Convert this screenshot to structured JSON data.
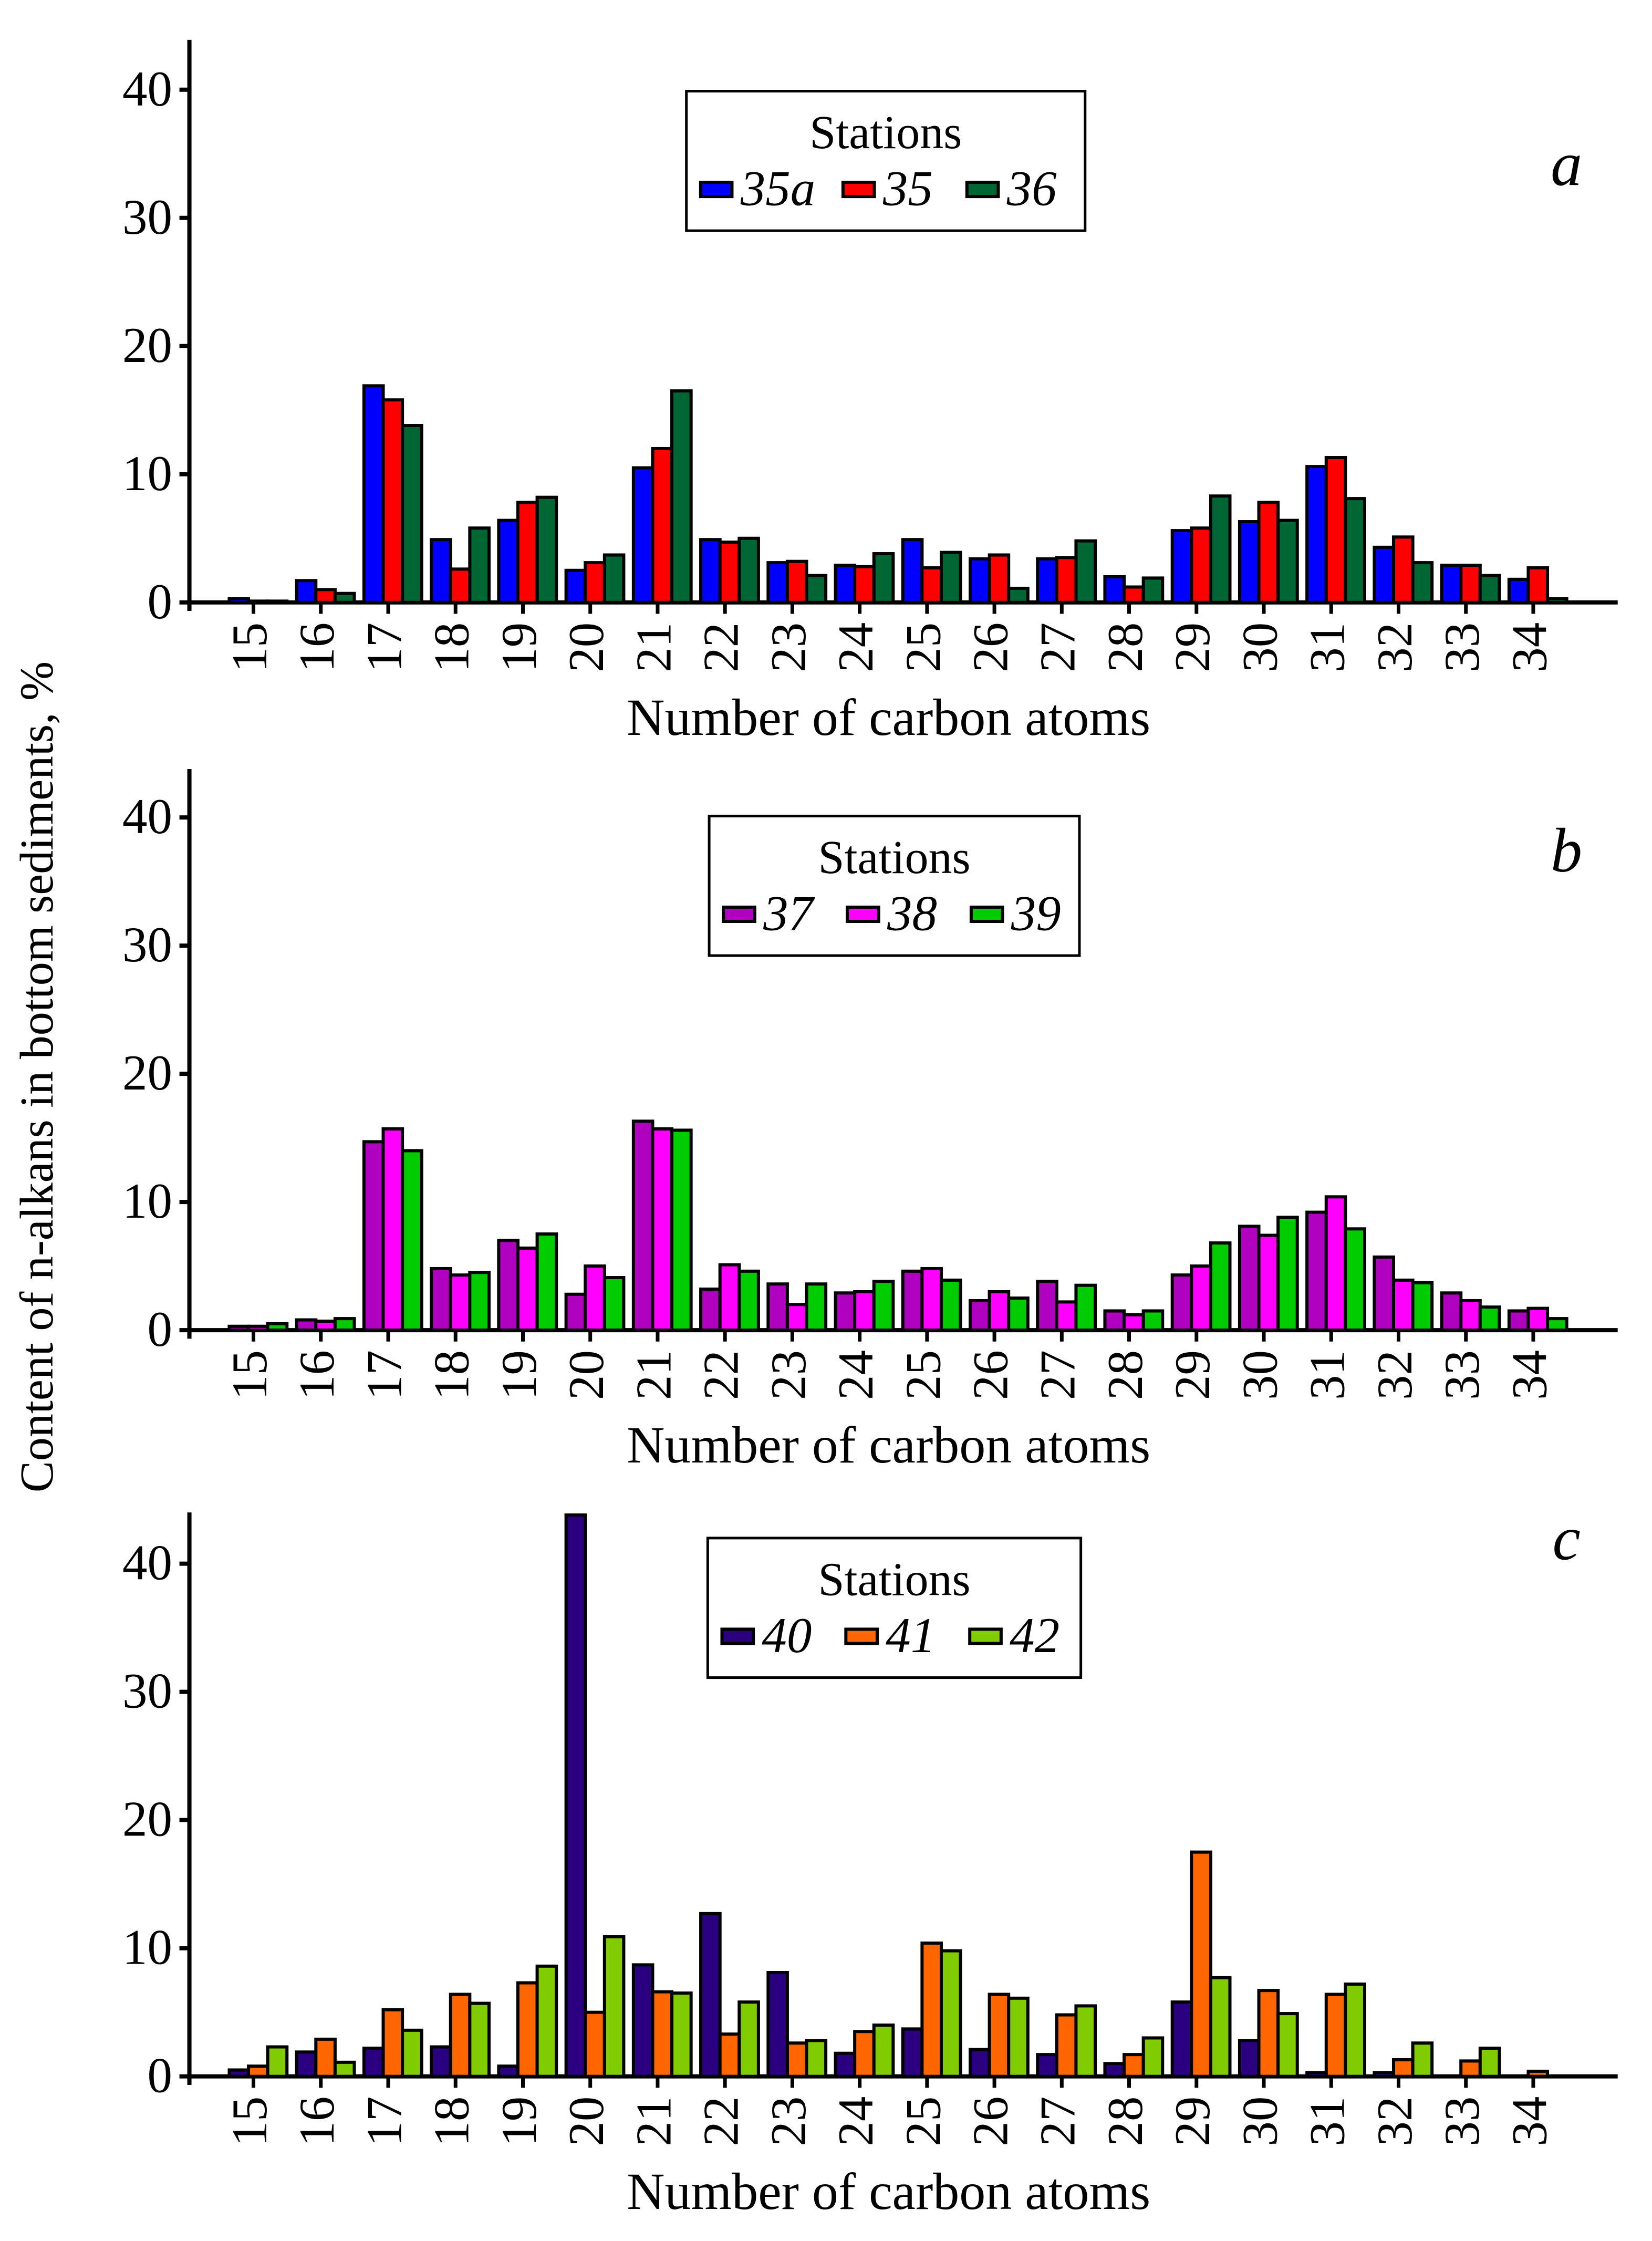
{
  "ylabel": "Content of n-alkans in bottom sediments, %",
  "chart_data": [
    {
      "type": "bar",
      "panel": "a",
      "xlabel": "Number of carbon atoms",
      "ylabel": "Content of n-alkans in bottom sediments, %",
      "ylim": [
        0,
        44
      ],
      "yticks": [
        0,
        10,
        20,
        30,
        40
      ],
      "legend_title": "Stations",
      "legend_position": "top-center",
      "categories": [
        "15",
        "16",
        "17",
        "18",
        "19",
        "20",
        "21",
        "22",
        "23",
        "24",
        "25",
        "26",
        "27",
        "28",
        "29",
        "30",
        "31",
        "32",
        "33",
        "34"
      ],
      "series": [
        {
          "name": "35a",
          "color": "#0000ff",
          "values": [
            0.3,
            1.7,
            16.9,
            4.9,
            6.4,
            2.5,
            10.5,
            4.9,
            3.1,
            2.9,
            4.9,
            3.4,
            3.4,
            2.0,
            5.6,
            6.3,
            10.6,
            4.3,
            2.9,
            1.8
          ]
        },
        {
          "name": "35",
          "color": "#ff0000",
          "values": [
            0.1,
            1.0,
            15.8,
            2.6,
            7.8,
            3.1,
            12.0,
            4.7,
            3.2,
            2.8,
            2.7,
            3.7,
            3.5,
            1.2,
            5.8,
            7.8,
            11.3,
            5.1,
            2.9,
            2.7
          ]
        },
        {
          "name": "36",
          "color": "#006633",
          "values": [
            0.1,
            0.7,
            13.8,
            5.8,
            8.2,
            3.7,
            16.5,
            5.0,
            2.1,
            3.8,
            3.9,
            1.1,
            4.8,
            1.9,
            8.3,
            6.4,
            8.1,
            3.1,
            2.1,
            0.3
          ]
        }
      ]
    },
    {
      "type": "bar",
      "panel": "b",
      "xlabel": "Number of carbon atoms",
      "ylabel": "Content of n-alkans in bottom sediments, %",
      "ylim": [
        0,
        44
      ],
      "yticks": [
        0,
        10,
        20,
        30,
        40
      ],
      "legend_title": "Stations",
      "legend_position": "top-center",
      "categories": [
        "15",
        "16",
        "17",
        "18",
        "19",
        "20",
        "21",
        "22",
        "23",
        "24",
        "25",
        "26",
        "27",
        "28",
        "29",
        "30",
        "31",
        "32",
        "33",
        "34"
      ],
      "series": [
        {
          "name": "37",
          "color": "#b000c0",
          "values": [
            0.3,
            0.8,
            14.7,
            4.8,
            7.0,
            2.8,
            16.3,
            3.2,
            3.6,
            2.9,
            4.6,
            2.3,
            3.8,
            1.5,
            4.3,
            8.1,
            9.2,
            5.7,
            2.9,
            1.5
          ]
        },
        {
          "name": "38",
          "color": "#ff00ff",
          "values": [
            0.3,
            0.7,
            15.7,
            4.3,
            6.4,
            5.0,
            15.7,
            5.1,
            2.0,
            3.0,
            4.8,
            3.0,
            2.2,
            1.2,
            5.0,
            7.4,
            10.4,
            3.9,
            2.3,
            1.7
          ]
        },
        {
          "name": "39",
          "color": "#00cc00",
          "values": [
            0.5,
            0.9,
            14.0,
            4.5,
            7.5,
            4.1,
            15.6,
            4.6,
            3.6,
            3.8,
            3.9,
            2.5,
            3.5,
            1.5,
            6.8,
            8.8,
            7.9,
            3.7,
            1.8,
            0.9
          ]
        }
      ]
    },
    {
      "type": "bar",
      "panel": "c",
      "xlabel": "Number of carbon atoms",
      "ylabel": "Content of n-alkans in bottom sediments, %",
      "ylim": [
        0,
        44
      ],
      "yticks": [
        0,
        10,
        20,
        30,
        40
      ],
      "legend_title": "Stations",
      "legend_position": "top-center",
      "categories": [
        "15",
        "16",
        "17",
        "18",
        "19",
        "20",
        "21",
        "22",
        "23",
        "24",
        "25",
        "26",
        "27",
        "28",
        "29",
        "30",
        "31",
        "32",
        "33",
        "34"
      ],
      "series": [
        {
          "name": "40",
          "color": "#2a0080",
          "values": [
            0.5,
            1.9,
            2.2,
            2.3,
            0.8,
            43.8,
            8.7,
            12.7,
            8.1,
            1.8,
            3.7,
            2.1,
            1.7,
            1.0,
            5.8,
            2.8,
            0.3,
            0.3,
            0.0,
            0.0
          ]
        },
        {
          "name": "41",
          "color": "#ff6600",
          "values": [
            0.8,
            2.9,
            5.2,
            6.4,
            7.3,
            5.0,
            6.6,
            3.3,
            2.6,
            3.5,
            10.4,
            6.4,
            4.8,
            1.7,
            17.5,
            6.7,
            6.4,
            1.3,
            1.2,
            0.4
          ]
        },
        {
          "name": "42",
          "color": "#80cc00",
          "values": [
            2.3,
            1.1,
            3.6,
            5.7,
            8.6,
            10.9,
            6.5,
            5.8,
            2.8,
            4.0,
            9.8,
            6.1,
            5.5,
            3.0,
            7.7,
            4.9,
            7.2,
            2.6,
            2.2,
            0.0
          ]
        }
      ]
    }
  ]
}
